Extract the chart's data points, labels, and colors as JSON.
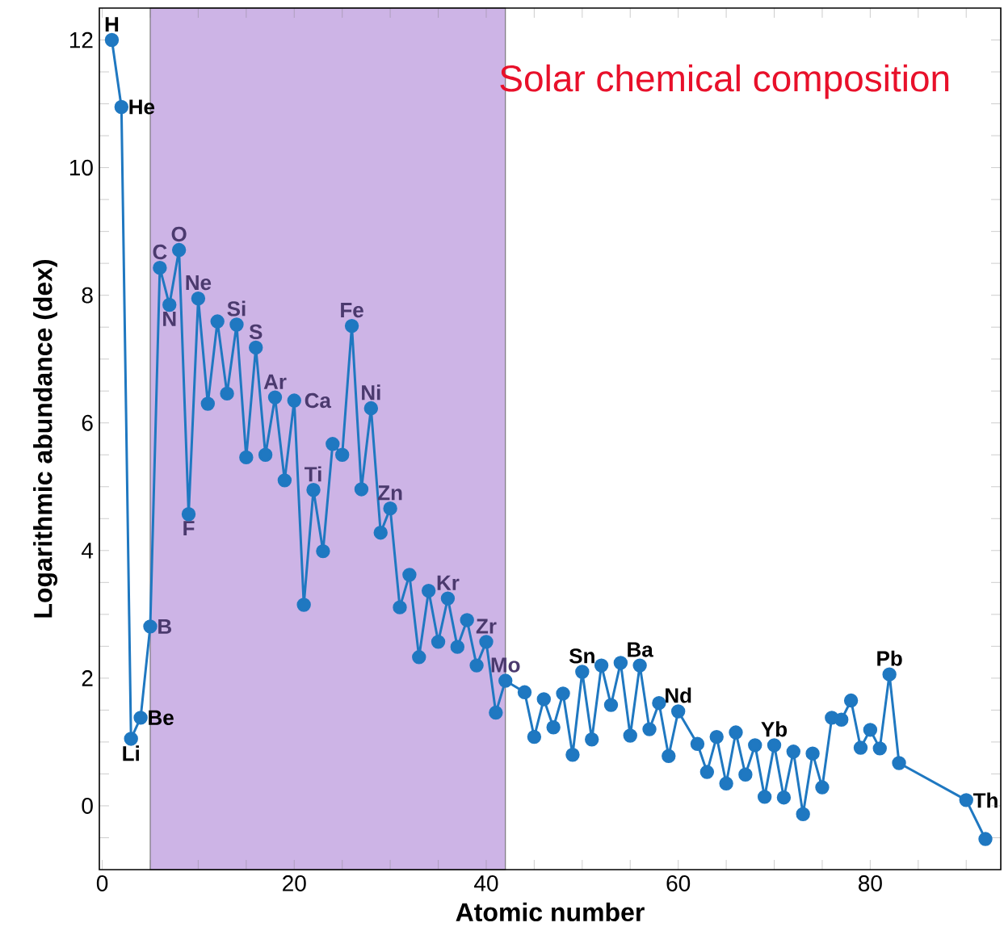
{
  "chart_data": {
    "type": "line",
    "title": "Solar chemical composition",
    "xlabel": "Atomic number",
    "ylabel": "Logarithmic abundance (dex)",
    "xlim": [
      -0.3,
      93.6
    ],
    "ylim": [
      -1,
      12.5
    ],
    "xticks": [
      0,
      {
        "value": 5,
        "label": null
      },
      {
        "value": 10,
        "label": null
      },
      {
        "value": 15,
        "label": null
      },
      20,
      {
        "value": 25,
        "label": null
      },
      {
        "value": 30,
        "label": null
      },
      {
        "value": 35,
        "label": null
      },
      40,
      {
        "value": 45,
        "label": null
      },
      {
        "value": 50,
        "label": null
      },
      {
        "value": 55,
        "label": null
      },
      60,
      {
        "value": 65,
        "label": null
      },
      {
        "value": 70,
        "label": null
      },
      {
        "value": 75,
        "label": null
      },
      80,
      {
        "value": 85,
        "label": null
      },
      {
        "value": 90,
        "label": null
      }
    ],
    "yticks": [
      {
        "value": -0.5,
        "label": null
      },
      0,
      {
        "value": 0.5,
        "label": null
      },
      {
        "value": 1,
        "label": null
      },
      {
        "value": 1.5,
        "label": null
      },
      2,
      {
        "value": 2.5,
        "label": null
      },
      {
        "value": 3,
        "label": null
      },
      {
        "value": 3.5,
        "label": null
      },
      4,
      {
        "value": 4.5,
        "label": null
      },
      {
        "value": 5,
        "label": null
      },
      {
        "value": 5.5,
        "label": null
      },
      6,
      {
        "value": 6.5,
        "label": null
      },
      {
        "value": 7,
        "label": null
      },
      {
        "value": 7.5,
        "label": null
      },
      8,
      {
        "value": 8.5,
        "label": null
      },
      {
        "value": 9,
        "label": null
      },
      {
        "value": 9.5,
        "label": null
      },
      10,
      {
        "value": 10.5,
        "label": null
      },
      {
        "value": 11,
        "label": null
      },
      {
        "value": 11.5,
        "label": null
      },
      12
    ],
    "marker": "circle",
    "line_style": "solid",
    "series": [
      {
        "color": "#1f78c1",
        "x": [
          1,
          2,
          3,
          4,
          5,
          6,
          7,
          8,
          9,
          10,
          11,
          12,
          13,
          14,
          15,
          16,
          17,
          18,
          19,
          20,
          21,
          22,
          23,
          24,
          25,
          26,
          27,
          28,
          29,
          30,
          31,
          32,
          33,
          34,
          35,
          36,
          37,
          38,
          39,
          40,
          41,
          42,
          44,
          45,
          46,
          47,
          48,
          49,
          50,
          51,
          52,
          53,
          54,
          55,
          56,
          57,
          58,
          59,
          60,
          62,
          63,
          64,
          65,
          66,
          67,
          68,
          69,
          70,
          71,
          72,
          73,
          74,
          75,
          76,
          77,
          78,
          79,
          80,
          81,
          82,
          83,
          90,
          92
        ],
        "values": [
          12.0,
          10.95,
          1.05,
          1.38,
          2.81,
          8.43,
          7.85,
          8.71,
          4.57,
          7.95,
          6.3,
          7.59,
          6.46,
          7.54,
          5.46,
          7.18,
          5.5,
          6.4,
          5.1,
          6.35,
          3.15,
          4.95,
          3.99,
          5.67,
          5.5,
          7.52,
          4.96,
          6.23,
          4.28,
          4.66,
          3.11,
          3.62,
          2.33,
          3.37,
          2.57,
          3.25,
          2.49,
          2.91,
          2.2,
          2.57,
          1.46,
          1.96,
          1.78,
          1.08,
          1.67,
          1.23,
          1.76,
          0.8,
          2.1,
          1.04,
          2.2,
          1.58,
          2.24,
          1.1,
          2.2,
          1.2,
          1.61,
          0.78,
          1.48,
          0.97,
          0.53,
          1.08,
          0.35,
          1.15,
          0.49,
          0.95,
          0.14,
          0.95,
          0.13,
          0.85,
          -0.13,
          0.82,
          0.29,
          1.38,
          1.35,
          1.65,
          0.91,
          1.19,
          0.9,
          2.06,
          0.67,
          0.09,
          -0.52
        ]
      }
    ],
    "bands": [
      {
        "axis": "x",
        "from": 5,
        "to": 42,
        "color": "#cdb4e6"
      }
    ],
    "annotations": [
      {
        "text": "H",
        "x": 1,
        "y": 12.0
      },
      {
        "text": "He",
        "x": 2,
        "y": 10.95
      },
      {
        "text": "Li",
        "x": 3,
        "y": 1.05
      },
      {
        "text": "Be",
        "x": 4,
        "y": 1.38
      },
      {
        "text": "B",
        "x": 5,
        "y": 2.81
      },
      {
        "text": "C",
        "x": 6,
        "y": 8.43
      },
      {
        "text": "N",
        "x": 7,
        "y": 7.85
      },
      {
        "text": "O",
        "x": 8,
        "y": 8.71
      },
      {
        "text": "F",
        "x": 9,
        "y": 4.57
      },
      {
        "text": "Ne",
        "x": 10,
        "y": 7.95
      },
      {
        "text": "Si",
        "x": 14,
        "y": 7.54
      },
      {
        "text": "S",
        "x": 16,
        "y": 7.18
      },
      {
        "text": "Ar",
        "x": 18,
        "y": 6.4
      },
      {
        "text": "Ca",
        "x": 20,
        "y": 6.35
      },
      {
        "text": "Ti",
        "x": 22,
        "y": 4.95
      },
      {
        "text": "Fe",
        "x": 26,
        "y": 7.52
      },
      {
        "text": "Ni",
        "x": 28,
        "y": 6.23
      },
      {
        "text": "Zn",
        "x": 30,
        "y": 4.66
      },
      {
        "text": "Kr",
        "x": 36,
        "y": 3.25
      },
      {
        "text": "Zr",
        "x": 40,
        "y": 2.57
      },
      {
        "text": "Mo",
        "x": 42,
        "y": 1.96
      },
      {
        "text": "Sn",
        "x": 50,
        "y": 2.1
      },
      {
        "text": "Ba",
        "x": 56,
        "y": 2.2
      },
      {
        "text": "Nd",
        "x": 60,
        "y": 1.48
      },
      {
        "text": "Yb",
        "x": 70,
        "y": 0.95
      },
      {
        "text": "Pb",
        "x": 82,
        "y": 2.06
      },
      {
        "text": "Th",
        "x": 90,
        "y": 0.09
      }
    ]
  }
}
